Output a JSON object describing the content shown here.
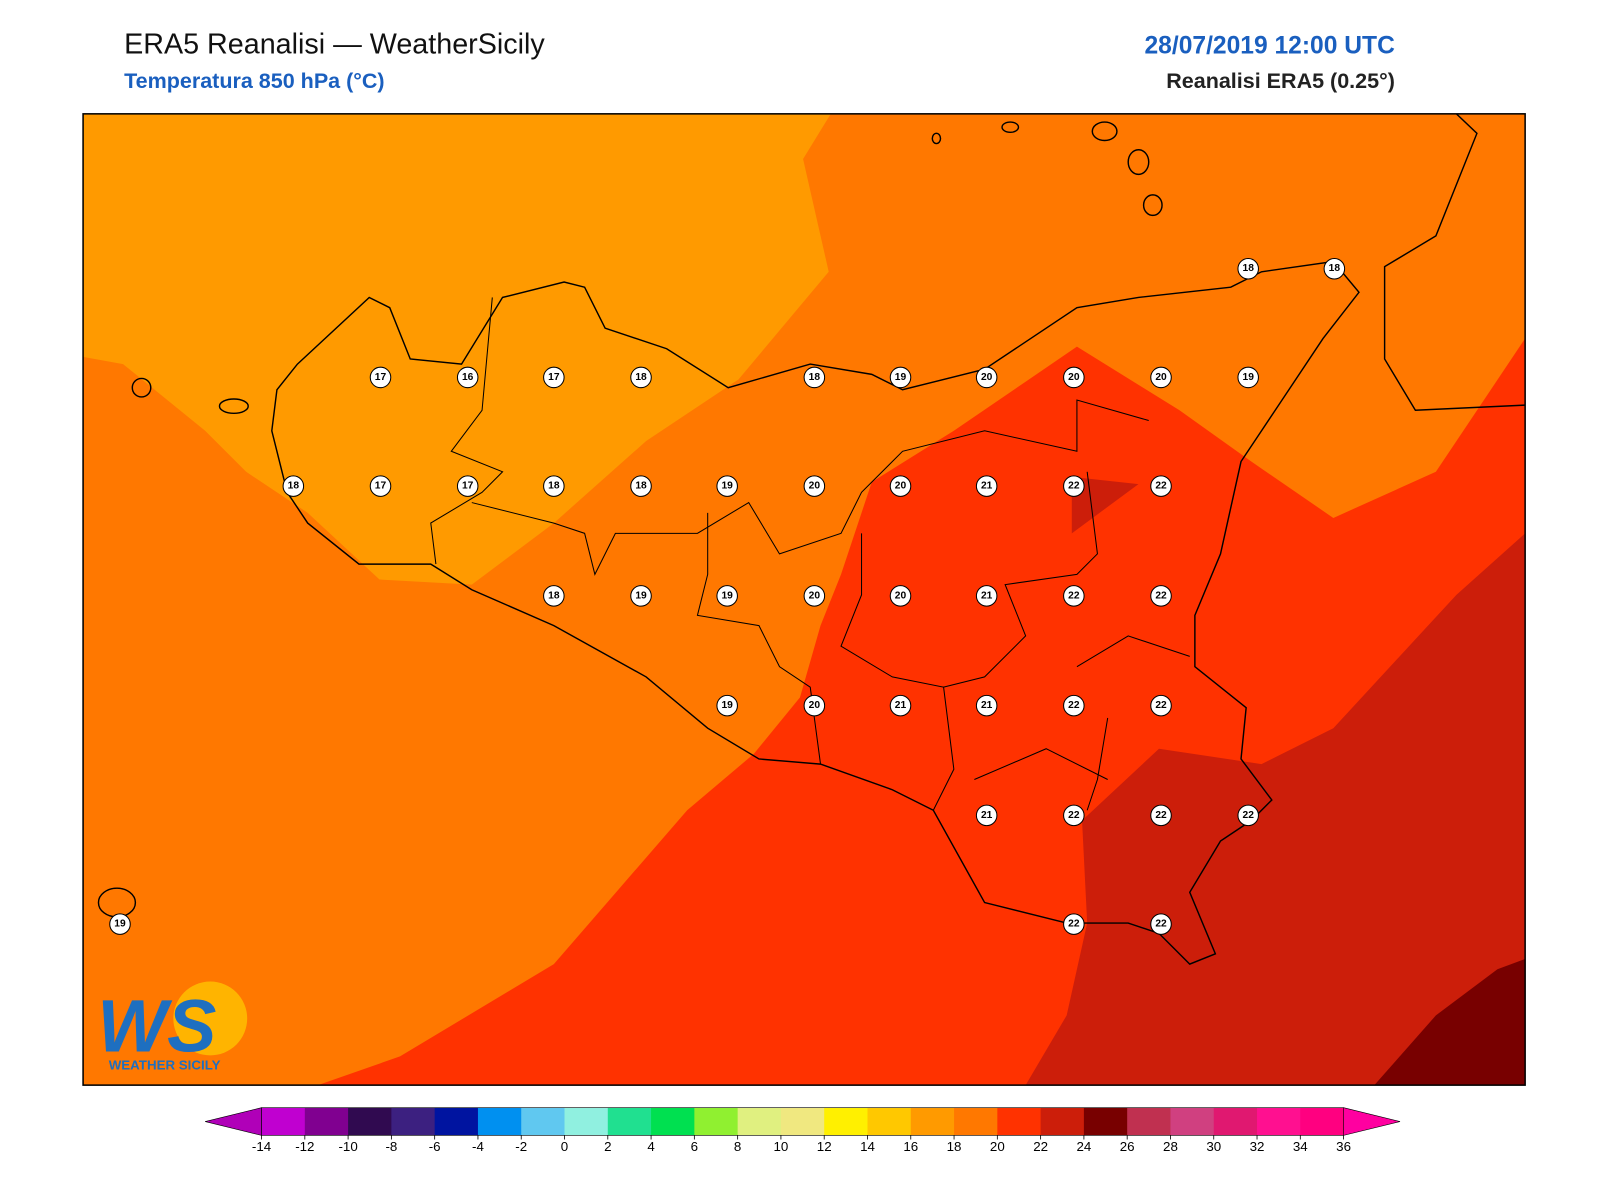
{
  "header": {
    "title": "ERA5 Reanalisi — WeatherSicily",
    "subtitle": "Temperatura 850 hPa (°C)",
    "date": "28/07/2019 12:00 UTC",
    "source": "Reanalisi ERA5 (0.25°)"
  },
  "stations": [
    17,
    16,
    17,
    18,
    18,
    19,
    20,
    20,
    20,
    19,
    18,
    18,
    18,
    17,
    17,
    18,
    18,
    19,
    20,
    20,
    21,
    22,
    22,
    18,
    19,
    19,
    20,
    20,
    21,
    22,
    22,
    19,
    20,
    21,
    21,
    22,
    22,
    21,
    22,
    22,
    22,
    19,
    22,
    22
  ],
  "logo": {
    "mark": "WS",
    "name": "WEATHER SICILY"
  },
  "colorbar": {
    "ticks": [
      -14,
      -12,
      -10,
      -8,
      -6,
      -4,
      -2,
      0,
      2,
      4,
      6,
      8,
      10,
      12,
      14,
      16,
      18,
      20,
      22,
      24,
      26,
      28,
      30,
      32,
      34,
      36
    ],
    "colors": [
      "#b000b8",
      "#c000d0",
      "#800090",
      "#300a50",
      "#3c2080",
      "#0014a0",
      "#0090f0",
      "#60c8f0",
      "#90f0e0",
      "#20e090",
      "#00e050",
      "#90f030",
      "#e0f080",
      "#f0e880",
      "#fff000",
      "#ffc800",
      "#ff9a00",
      "#ff7800",
      "#ff3200",
      "#cc1e0a",
      "#780000",
      "#c03050",
      "#d04080",
      "#e01870",
      "#ff1090",
      "#ff0080",
      "#ff00a0"
    ]
  }
}
